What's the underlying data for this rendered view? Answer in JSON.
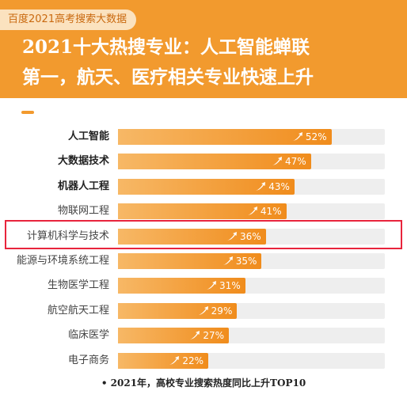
{
  "header": {
    "tag": "百度2021高考搜索大数据",
    "headline_line1": "2021十大热搜专业：人工智能蝉联",
    "headline_line2": "第一，航天、医疗相关专业快速上升"
  },
  "footnote": "• 2021年，高校专业搜索热度同比上升TOP10",
  "highlighted_category": "计算机科学与技术",
  "colors": {
    "accent": "#f29a2e",
    "bar_start": "#f7b866",
    "bar_end": "#f08c1c",
    "track": "#eeeeee",
    "highlight": "#e8243c"
  },
  "chart_data": {
    "type": "bar",
    "orientation": "horizontal",
    "title": "2021十大热搜专业：人工智能蝉联第一，航天、医疗相关专业快速上升",
    "xlabel": "",
    "ylabel": "",
    "xlim": [
      0,
      65
    ],
    "categories": [
      "人工智能",
      "大数据技术",
      "机器人工程",
      "物联网工程",
      "计算机科学与技术",
      "能源与环境系统工程",
      "生物医学工程",
      "航空航天工程",
      "临床医学",
      "电子商务"
    ],
    "values": [
      52,
      47,
      43,
      41,
      36,
      35,
      31,
      29,
      27,
      22
    ],
    "value_labels": [
      "52%",
      "47%",
      "43%",
      "41%",
      "36%",
      "35%",
      "31%",
      "29%",
      "27%",
      "22%"
    ],
    "bold_categories": [
      "人工智能",
      "大数据技术",
      "机器人工程"
    ]
  }
}
